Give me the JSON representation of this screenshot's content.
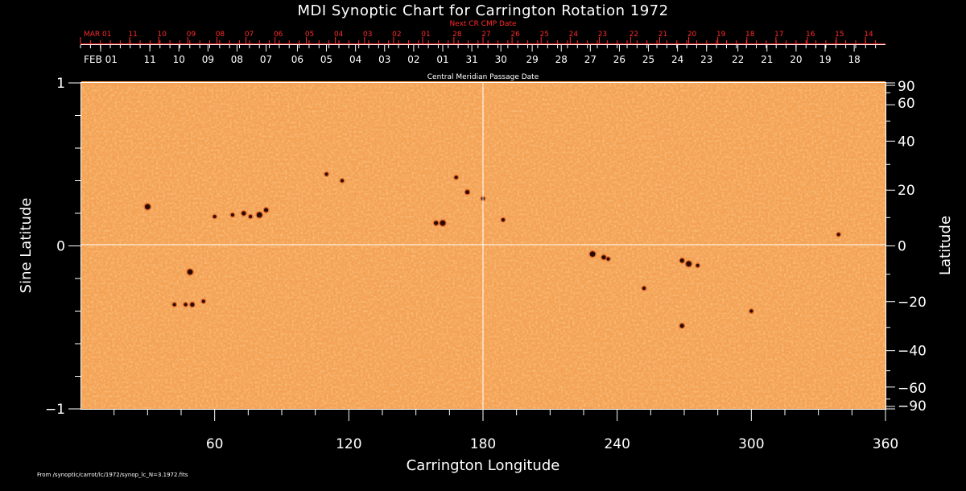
{
  "colors": {
    "background": "#000000",
    "map": "#f4a255",
    "axis": "#ffffff",
    "next_dates": "#ff2a2a",
    "spot": "#2a0a00"
  },
  "chart_data": {
    "type": "heatmap",
    "title": "MDI Synoptic Chart for Carrington Rotation 1972",
    "next_cr_label": "Next CR CMP Date",
    "cmp_label": "Central Meridian Passage Date",
    "xlabel": "Carrington Longitude",
    "ylabel_left": "Sine Latitude",
    "ylabel_right": "Latitude",
    "xlim": [
      0,
      360
    ],
    "ylim": [
      -1,
      1
    ],
    "x_ticks": [
      60,
      120,
      180,
      240,
      300,
      360
    ],
    "x_tick_labels": [
      "60",
      "120",
      "180",
      "240",
      "300",
      "360"
    ],
    "left_ticks": [
      1,
      0,
      -1
    ],
    "left_tick_labels": [
      "1",
      "0",
      "−1"
    ],
    "right_ticks_deg": [
      90,
      60,
      40,
      20,
      0,
      -20,
      -40,
      -60,
      -90
    ],
    "right_tick_labels": [
      "90",
      "60",
      "40",
      "20",
      "0",
      "−20",
      "−40",
      "−60",
      "−90"
    ],
    "next_cr_dates": [
      {
        "lon": 0,
        "label": "MAR 01"
      },
      {
        "lon": 22,
        "label": "11"
      },
      {
        "lon": 35,
        "label": "10"
      },
      {
        "lon": 48,
        "label": "09"
      },
      {
        "lon": 61,
        "label": "08"
      },
      {
        "lon": 74,
        "label": "07"
      },
      {
        "lon": 87,
        "label": "06"
      },
      {
        "lon": 101,
        "label": "05"
      },
      {
        "lon": 114,
        "label": "04"
      },
      {
        "lon": 127,
        "label": "03"
      },
      {
        "lon": 140,
        "label": "02"
      },
      {
        "lon": 153,
        "label": "01"
      },
      {
        "lon": 167,
        "label": "28"
      },
      {
        "lon": 180,
        "label": "27"
      },
      {
        "lon": 193,
        "label": "26"
      },
      {
        "lon": 206,
        "label": "25"
      },
      {
        "lon": 219,
        "label": "24"
      },
      {
        "lon": 232,
        "label": "23"
      },
      {
        "lon": 246,
        "label": "22"
      },
      {
        "lon": 259,
        "label": "21"
      },
      {
        "lon": 272,
        "label": "20"
      },
      {
        "lon": 285,
        "label": "19"
      },
      {
        "lon": 298,
        "label": "18"
      },
      {
        "lon": 311,
        "label": "17"
      },
      {
        "lon": 325,
        "label": "16"
      },
      {
        "lon": 338,
        "label": "15"
      },
      {
        "lon": 351,
        "label": "14"
      }
    ],
    "cmp_dates": [
      {
        "lon": 9,
        "label": "FEB 01"
      },
      {
        "lon": 31,
        "label": "11"
      },
      {
        "lon": 44,
        "label": "10"
      },
      {
        "lon": 57,
        "label": "09"
      },
      {
        "lon": 70,
        "label": "08"
      },
      {
        "lon": 83,
        "label": "07"
      },
      {
        "lon": 97,
        "label": "06"
      },
      {
        "lon": 110,
        "label": "05"
      },
      {
        "lon": 123,
        "label": "04"
      },
      {
        "lon": 136,
        "label": "03"
      },
      {
        "lon": 149,
        "label": "02"
      },
      {
        "lon": 162,
        "label": "01"
      },
      {
        "lon": 175,
        "label": "31"
      },
      {
        "lon": 188,
        "label": "30"
      },
      {
        "lon": 202,
        "label": "29"
      },
      {
        "lon": 215,
        "label": "28"
      },
      {
        "lon": 228,
        "label": "27"
      },
      {
        "lon": 241,
        "label": "26"
      },
      {
        "lon": 254,
        "label": "25"
      },
      {
        "lon": 267,
        "label": "24"
      },
      {
        "lon": 280,
        "label": "23"
      },
      {
        "lon": 294,
        "label": "22"
      },
      {
        "lon": 307,
        "label": "21"
      },
      {
        "lon": 320,
        "label": "20"
      },
      {
        "lon": 333,
        "label": "19"
      },
      {
        "lon": 346,
        "label": "18"
      }
    ],
    "sunspots": [
      {
        "lon": 30,
        "sinlat": 0.24
      },
      {
        "lon": 60,
        "sinlat": 0.18
      },
      {
        "lon": 68,
        "sinlat": 0.19
      },
      {
        "lon": 73,
        "sinlat": 0.2
      },
      {
        "lon": 76,
        "sinlat": 0.18
      },
      {
        "lon": 80,
        "sinlat": 0.19
      },
      {
        "lon": 83,
        "sinlat": 0.22
      },
      {
        "lon": 110,
        "sinlat": 0.44
      },
      {
        "lon": 117,
        "sinlat": 0.4
      },
      {
        "lon": 159,
        "sinlat": 0.14
      },
      {
        "lon": 162,
        "sinlat": 0.14
      },
      {
        "lon": 168,
        "sinlat": 0.42
      },
      {
        "lon": 173,
        "sinlat": 0.33
      },
      {
        "lon": 180,
        "sinlat": 0.29
      },
      {
        "lon": 189,
        "sinlat": 0.16
      },
      {
        "lon": 49,
        "sinlat": -0.16
      },
      {
        "lon": 42,
        "sinlat": -0.36
      },
      {
        "lon": 47,
        "sinlat": -0.36
      },
      {
        "lon": 50,
        "sinlat": -0.36
      },
      {
        "lon": 55,
        "sinlat": -0.34
      },
      {
        "lon": 229,
        "sinlat": -0.05
      },
      {
        "lon": 234,
        "sinlat": -0.07
      },
      {
        "lon": 236,
        "sinlat": -0.08
      },
      {
        "lon": 252,
        "sinlat": -0.26
      },
      {
        "lon": 269,
        "sinlat": -0.09
      },
      {
        "lon": 272,
        "sinlat": -0.11
      },
      {
        "lon": 276,
        "sinlat": -0.12
      },
      {
        "lon": 269,
        "sinlat": -0.49
      },
      {
        "lon": 300,
        "sinlat": -0.4
      },
      {
        "lon": 339,
        "sinlat": 0.07
      }
    ]
  },
  "footer": {
    "source": "From /synoptic/carrot/lc/1972/synop_lc_N=3.1972.fits"
  }
}
